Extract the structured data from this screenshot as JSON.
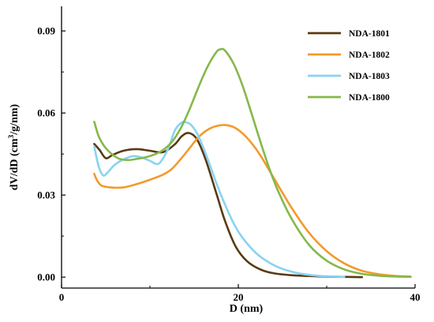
{
  "chart_data": {
    "type": "line",
    "title": "",
    "xlabel": "D (nm)",
    "ylabel_parts": [
      "dV/dD (cm",
      "3",
      "/g/nm)"
    ],
    "xlim": [
      0,
      40
    ],
    "ylim": [
      -0.004,
      0.099
    ],
    "xticks": [
      0,
      20,
      40
    ],
    "xtick_labels": [
      "0",
      "20",
      "40"
    ],
    "yticks": [
      0.0,
      0.03,
      0.06,
      0.09
    ],
    "ytick_labels": [
      "0.00",
      "0.03",
      "0.06",
      "0.09"
    ],
    "grid": false,
    "legend_position": "top-right",
    "series": [
      {
        "name": "NDA-1801",
        "color": "#5a3a12",
        "x": [
          3.7,
          4.3,
          5.0,
          5.8,
          7.0,
          8.5,
          10.0,
          11.5,
          12.8,
          13.6,
          14.4,
          15.3,
          16.3,
          17.5,
          18.5,
          19.7,
          21.0,
          22.5,
          24.0,
          26.0,
          28.0,
          30.0,
          32.0,
          34.0
        ],
        "y": [
          0.0487,
          0.0465,
          0.0435,
          0.0447,
          0.0462,
          0.0468,
          0.0462,
          0.0457,
          0.0485,
          0.0515,
          0.0527,
          0.0505,
          0.043,
          0.0308,
          0.0205,
          0.0112,
          0.0058,
          0.0028,
          0.0014,
          0.0007,
          0.0004,
          0.0002,
          0.0001,
          0.0
        ]
      },
      {
        "name": "NDA-1802",
        "color": "#f39a2c",
        "x": [
          3.7,
          4.0,
          4.5,
          5.5,
          7.0,
          8.5,
          10.0,
          11.5,
          12.5,
          13.5,
          14.5,
          15.5,
          16.5,
          17.5,
          18.5,
          19.5,
          20.5,
          21.5,
          22.5,
          24.0,
          26.0,
          28.0,
          30.0,
          32.0,
          34.0,
          36.0,
          38.0,
          39.5
        ],
        "y": [
          0.0378,
          0.0355,
          0.0335,
          0.0328,
          0.0328,
          0.034,
          0.0356,
          0.0375,
          0.0396,
          0.0432,
          0.0472,
          0.0512,
          0.0538,
          0.0552,
          0.0556,
          0.0548,
          0.0525,
          0.049,
          0.0445,
          0.0363,
          0.0255,
          0.0162,
          0.0095,
          0.005,
          0.0023,
          0.001,
          0.0004,
          0.0002
        ]
      },
      {
        "name": "NDA-1803",
        "color": "#89d3f0",
        "x": [
          3.7,
          4.2,
          4.7,
          5.2,
          6.0,
          7.0,
          8.0,
          9.0,
          10.0,
          11.0,
          12.0,
          12.8,
          13.5,
          14.0,
          14.7,
          15.5,
          16.5,
          17.5,
          18.5,
          19.5,
          20.5,
          22.0,
          23.5,
          25.0,
          27.0,
          29.0,
          31.0,
          32.0
        ],
        "y": [
          0.0478,
          0.0405,
          0.0372,
          0.0382,
          0.041,
          0.043,
          0.0442,
          0.0438,
          0.0425,
          0.0415,
          0.0465,
          0.0535,
          0.0563,
          0.0567,
          0.0555,
          0.0515,
          0.0435,
          0.0345,
          0.0265,
          0.0195,
          0.0143,
          0.0088,
          0.0053,
          0.003,
          0.0013,
          0.0005,
          0.0002,
          0.0001
        ]
      },
      {
        "name": "NDA-1800",
        "color": "#85b84a",
        "x": [
          3.7,
          4.2,
          4.8,
          5.5,
          6.5,
          7.5,
          8.5,
          9.5,
          10.5,
          11.5,
          12.5,
          13.5,
          14.5,
          15.5,
          16.5,
          17.5,
          18.0,
          18.5,
          19.5,
          20.5,
          21.5,
          22.5,
          23.5,
          24.5,
          26.0,
          28.0,
          30.0,
          32.0,
          34.0,
          36.0,
          38.0,
          39.5
        ],
        "y": [
          0.0568,
          0.0515,
          0.048,
          0.0455,
          0.0433,
          0.0428,
          0.0432,
          0.0438,
          0.0448,
          0.0465,
          0.0495,
          0.0545,
          0.0615,
          0.0695,
          0.0768,
          0.0822,
          0.0833,
          0.0828,
          0.0778,
          0.0698,
          0.0598,
          0.0495,
          0.0398,
          0.0315,
          0.0215,
          0.0118,
          0.006,
          0.0028,
          0.0012,
          0.0005,
          0.0002,
          0.0001
        ]
      }
    ]
  }
}
